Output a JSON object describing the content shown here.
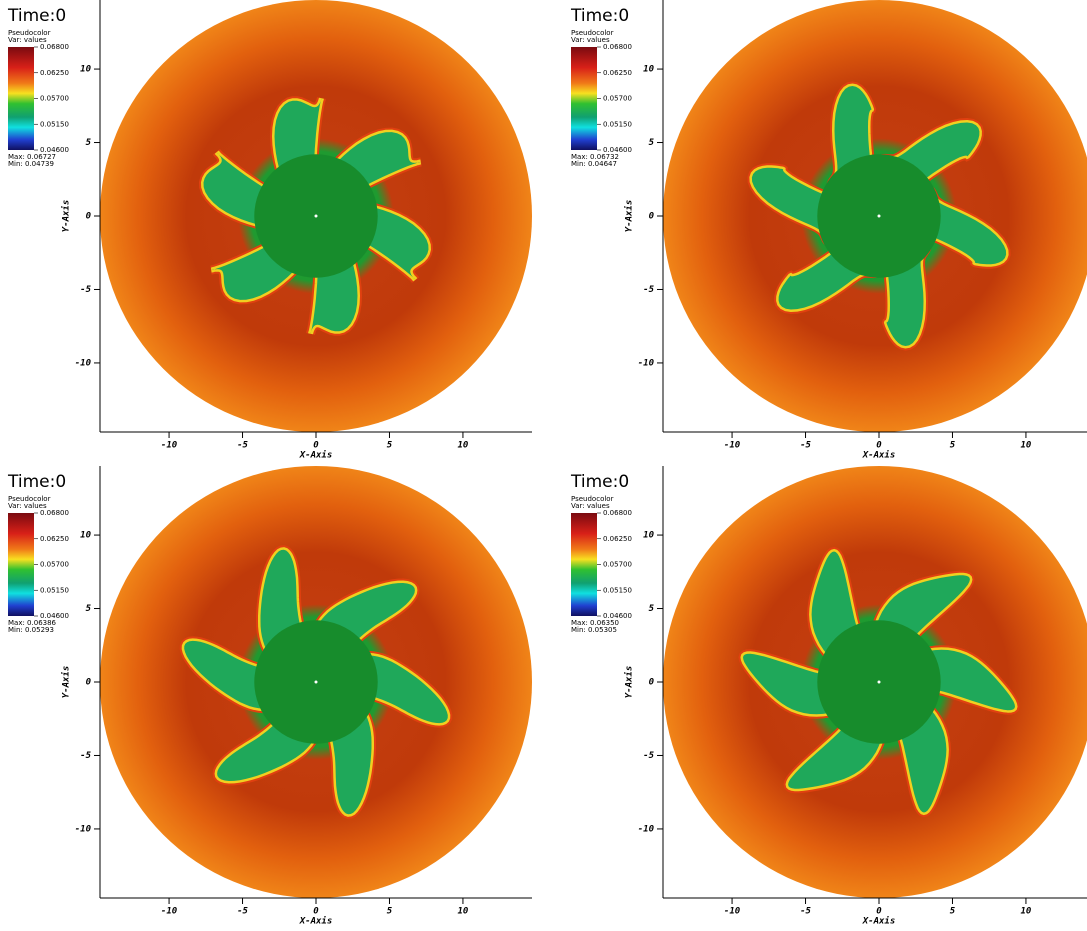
{
  "chart_data": [
    {
      "type": "pseudocolor",
      "title": "Time:0",
      "legend_title": "Pseudocolor",
      "variable": "Var: values",
      "colorbar": {
        "lim": [
          0.046,
          0.068
        ],
        "ticks": [
          {
            "value": 0.068,
            "label": "0.06800"
          },
          {
            "value": 0.0625,
            "label": "0.06250"
          },
          {
            "value": 0.057,
            "label": "0.05700"
          },
          {
            "value": 0.0515,
            "label": "0.05150"
          },
          {
            "value": 0.046,
            "label": "0.04600"
          }
        ]
      },
      "max": "Max: 0.06727",
      "min": "Min: 0.04739",
      "xlabel": "X-Axis",
      "ylabel": "Y-Axis",
      "xlim": [
        -14.7,
        14.7
      ],
      "ylim": [
        -14.7,
        14.7
      ],
      "xticks": [
        -10,
        -5,
        0,
        5,
        10
      ],
      "yticks": [
        -10,
        -5,
        0,
        5,
        10
      ]
    },
    {
      "type": "pseudocolor",
      "title": "Time:0",
      "legend_title": "Pseudocolor",
      "variable": "Var: values",
      "colorbar": {
        "lim": [
          0.046,
          0.068
        ],
        "ticks": [
          {
            "value": 0.068,
            "label": "0.06800"
          },
          {
            "value": 0.0625,
            "label": "0.06250"
          },
          {
            "value": 0.057,
            "label": "0.05700"
          },
          {
            "value": 0.0515,
            "label": "0.05150"
          },
          {
            "value": 0.046,
            "label": "0.04600"
          }
        ]
      },
      "max": "Max: 0.06732",
      "min": "Min: 0.04647",
      "xlabel": "X-Axis",
      "ylabel": "Y-Axis",
      "xlim": [
        -14.7,
        14.7
      ],
      "ylim": [
        -14.7,
        14.7
      ],
      "xticks": [
        -10,
        -5,
        0,
        5,
        10
      ],
      "yticks": [
        -10,
        -5,
        0,
        5,
        10
      ]
    },
    {
      "type": "pseudocolor",
      "title": "Time:0",
      "legend_title": "Pseudocolor",
      "variable": "Var: values",
      "colorbar": {
        "lim": [
          0.046,
          0.068
        ],
        "ticks": [
          {
            "value": 0.068,
            "label": "0.06800"
          },
          {
            "value": 0.0625,
            "label": "0.06250"
          },
          {
            "value": 0.057,
            "label": "0.05700"
          },
          {
            "value": 0.0515,
            "label": "0.05150"
          },
          {
            "value": 0.046,
            "label": "0.04600"
          }
        ]
      },
      "max": "Max: 0.06386",
      "min": "Min: 0.05293",
      "xlabel": "X-Axis",
      "ylabel": "Y-Axis",
      "xlim": [
        -14.7,
        14.7
      ],
      "ylim": [
        -14.7,
        14.7
      ],
      "xticks": [
        -10,
        -5,
        0,
        5,
        10
      ],
      "yticks": [
        -10,
        -5,
        0,
        5,
        10
      ]
    },
    {
      "type": "pseudocolor",
      "title": "Time:0",
      "legend_title": "Pseudocolor",
      "variable": "Var: values",
      "colorbar": {
        "lim": [
          0.046,
          0.068
        ],
        "ticks": [
          {
            "value": 0.068,
            "label": "0.06800"
          },
          {
            "value": 0.0625,
            "label": "0.06250"
          },
          {
            "value": 0.057,
            "label": "0.05700"
          },
          {
            "value": 0.0515,
            "label": "0.05150"
          },
          {
            "value": 0.046,
            "label": "0.04600"
          }
        ]
      },
      "max": "Max: 0.06350",
      "min": "Min: 0.05305",
      "xlabel": "X-Axis",
      "ylabel": "Y-Axis",
      "xlim": [
        -14.7,
        14.7
      ],
      "ylim": [
        -14.7,
        14.7
      ],
      "xticks": [
        -10,
        -5,
        0,
        5,
        10
      ],
      "yticks": [
        -10,
        -5,
        0,
        5,
        10
      ]
    }
  ]
}
